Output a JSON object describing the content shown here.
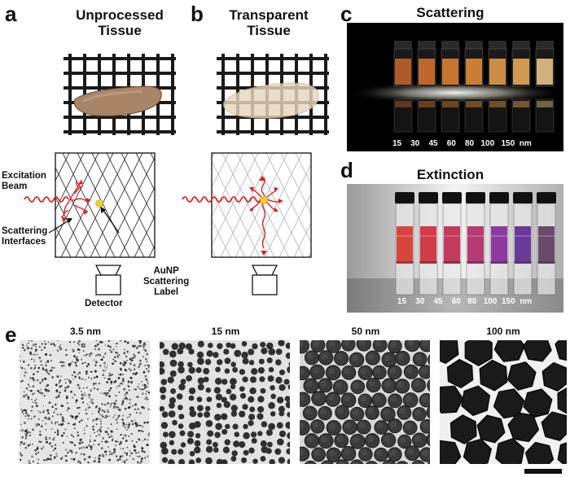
{
  "panel_letters": {
    "a": "a",
    "b": "b",
    "c": "c",
    "d": "d",
    "e": "e"
  },
  "panel_a": {
    "title_line1": "Unprocessed",
    "title_line2": "Tissue",
    "excitation_line1": "Excitation",
    "excitation_line2": "Beam",
    "scattering_line1": "Scattering",
    "scattering_line2": "Interfaces",
    "detector": "Detector",
    "aunp_line1": "AuNP",
    "aunp_line2": "Scattering",
    "aunp_line3": "Label"
  },
  "panel_b": {
    "title_line1": "Transparent",
    "title_line2": "Tissue"
  },
  "panel_c": {
    "title": "Scattering",
    "sizes": [
      "15",
      "30",
      "45",
      "60",
      "80",
      "100",
      "150"
    ],
    "unit": "nm",
    "vial_colors": [
      "#c0622a",
      "#d0702c",
      "#d88030",
      "#e08a3a",
      "#e09a4a",
      "#e4a85a",
      "#e6c08a"
    ]
  },
  "panel_d": {
    "title": "Extinction",
    "sizes": [
      "15",
      "30",
      "45",
      "60",
      "80",
      "100",
      "150"
    ],
    "unit": "nm",
    "vial_colors": [
      "#d8453e",
      "#d23c46",
      "#c23a5c",
      "#b83a72",
      "#8c3aa0",
      "#6a3a9a",
      "#6a4a6a"
    ]
  },
  "panel_e": {
    "captions": [
      "3.5 nm",
      "15 nm",
      "50 nm",
      "100 nm"
    ]
  },
  "colors": {
    "beam": "#e02020",
    "aunp": "#f0d020"
  }
}
